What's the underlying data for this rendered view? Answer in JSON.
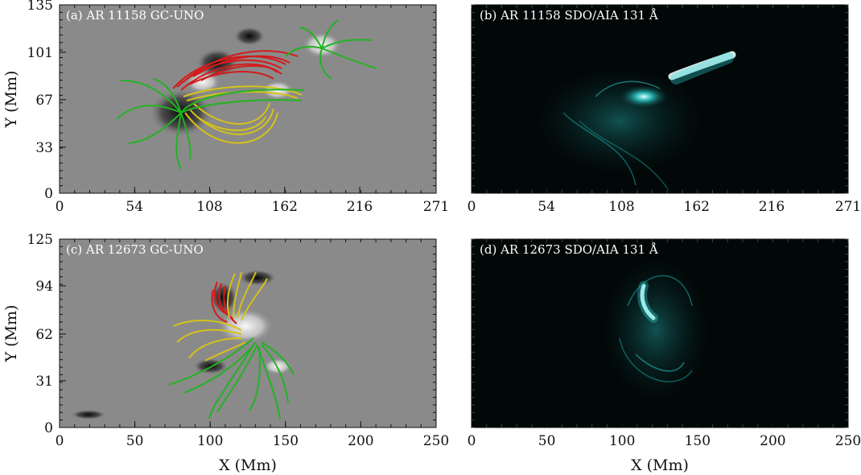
{
  "colors": {
    "magnetogram_bg": "#8a8a8a",
    "aia_bg": "#020707",
    "aia_emission": "#19d2d2",
    "closed_loops_red": "#d41a1a",
    "closed_loops_yellow": "#d4c21a",
    "open_lines_green": "#22b322"
  },
  "chart_data": [
    {
      "panel": "a",
      "type": "heatmap",
      "title": "(a) AR 11158 GC-UNO",
      "xlabel": "",
      "ylabel": "Y (Mm)",
      "xlim": [
        0,
        271
      ],
      "ylim": [
        0,
        135
      ],
      "xticks": [
        "0",
        "54",
        "108",
        "162",
        "216",
        "271"
      ],
      "yticks": [
        "0",
        "33",
        "67",
        "101",
        "135"
      ],
      "overlay": "magnetic field lines",
      "line_colors": [
        "red",
        "yellow",
        "green"
      ]
    },
    {
      "panel": "b",
      "type": "heatmap",
      "title": "(b) AR 11158 SDO/AIA 131 Å",
      "xlabel": "",
      "ylabel": "",
      "xlim": [
        0,
        271
      ],
      "ylim": [
        0,
        135
      ],
      "xticks": [
        "0",
        "54",
        "108",
        "162",
        "216",
        "271"
      ],
      "yticks": []
    },
    {
      "panel": "c",
      "type": "heatmap",
      "title": "(c) AR 12673 GC-UNO",
      "xlabel": "X (Mm)",
      "ylabel": "Y (Mm)",
      "xlim": [
        0,
        250
      ],
      "ylim": [
        0,
        125
      ],
      "xticks": [
        "0",
        "50",
        "100",
        "150",
        "200",
        "250"
      ],
      "yticks": [
        "0",
        "31",
        "62",
        "94",
        "125"
      ],
      "overlay": "magnetic field lines",
      "line_colors": [
        "red",
        "yellow",
        "green"
      ]
    },
    {
      "panel": "d",
      "type": "heatmap",
      "title": "(d) AR 12673 SDO/AIA 131 Å",
      "xlabel": "X (Mm)",
      "ylabel": "",
      "xlim": [
        0,
        250
      ],
      "ylim": [
        0,
        125
      ],
      "xticks": [
        "0",
        "50",
        "100",
        "150",
        "200",
        "250"
      ],
      "yticks": []
    }
  ]
}
